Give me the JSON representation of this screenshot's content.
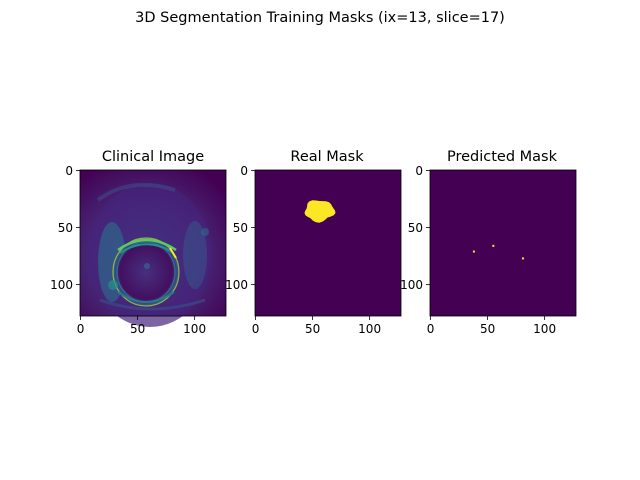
{
  "figure": {
    "suptitle": "3D Segmentation Training Masks (ix=13, slice=17)"
  },
  "colors": {
    "viridis_low": "#440154",
    "viridis_high": "#fde725",
    "viridis_mid_blue": "#31688e",
    "viridis_teal": "#21918c",
    "viridis_green": "#5ec962"
  },
  "chart_data": [
    {
      "type": "heatmap",
      "title": "Clinical Image",
      "xlabel": "",
      "ylabel": "",
      "xlim": [
        0,
        127
      ],
      "ylim": [
        127,
        0
      ],
      "xticks": [
        0,
        50,
        100
      ],
      "yticks": [
        0,
        50,
        100
      ],
      "colormap": "viridis",
      "content": "axial MRI slice (bladder/pelvis) with ring-shaped bright structure centered near (58, 88)"
    },
    {
      "type": "heatmap",
      "title": "Real Mask",
      "xlabel": "",
      "ylabel": "",
      "xlim": [
        0,
        127
      ],
      "ylim": [
        127,
        0
      ],
      "xticks": [
        0,
        50,
        100
      ],
      "yticks": [
        0,
        50,
        100
      ],
      "colormap": "viridis",
      "values_present": [
        0,
        1
      ],
      "mask_region": {
        "center_x": 56,
        "center_y": 35,
        "radius_x": 13,
        "radius_y": 9,
        "x_range": [
          44,
          70
        ],
        "y_range": [
          28,
          46
        ]
      }
    },
    {
      "type": "heatmap",
      "title": "Predicted Mask",
      "xlabel": "",
      "ylabel": "",
      "xlim": [
        0,
        127
      ],
      "ylim": [
        127,
        0
      ],
      "xticks": [
        0,
        50,
        100
      ],
      "yticks": [
        0,
        50,
        100
      ],
      "colormap": "viridis",
      "values_present": [
        0,
        1
      ],
      "positive_pixels": [
        {
          "x": 38,
          "y": 71
        },
        {
          "x": 55,
          "y": 66
        },
        {
          "x": 81,
          "y": 77
        }
      ]
    }
  ]
}
